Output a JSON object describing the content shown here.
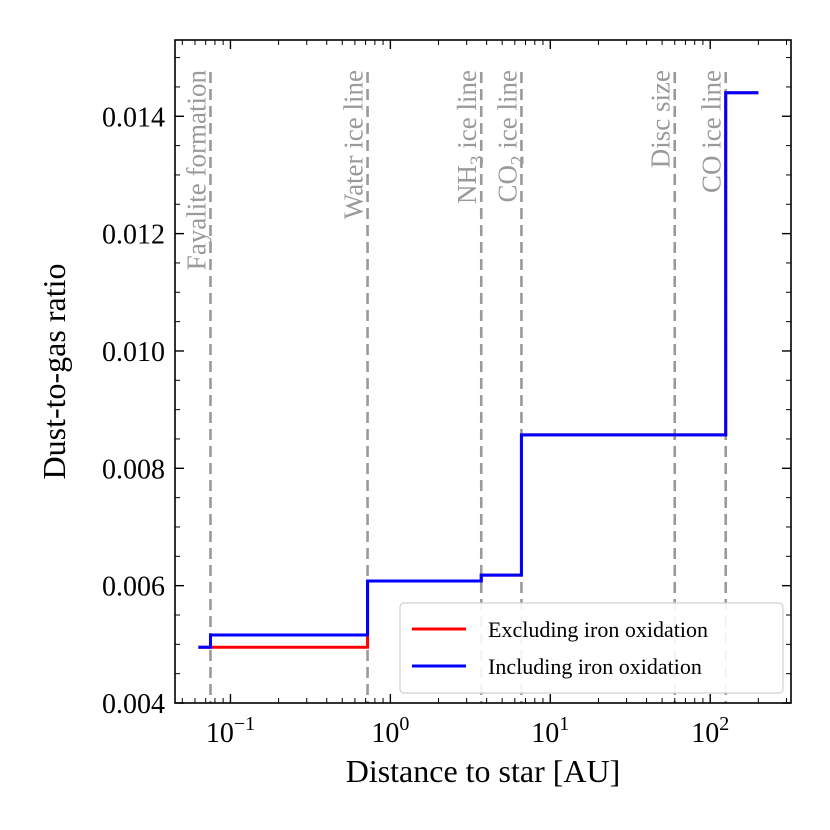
{
  "chart_data": {
    "type": "line",
    "title": "",
    "xlabel": "Distance to star [AU]",
    "ylabel": "Dust-to-gas ratio",
    "xscale": "log",
    "xlim": [
      0.045,
      320
    ],
    "ylim": [
      0.004,
      0.0153
    ],
    "x_ticks": [
      {
        "value": 0.1,
        "base": "10",
        "exp": "−1"
      },
      {
        "value": 1,
        "base": "10",
        "exp": "0"
      },
      {
        "value": 10,
        "base": "10",
        "exp": "1"
      },
      {
        "value": 100,
        "base": "10",
        "exp": "2"
      }
    ],
    "y_ticks": [
      {
        "value": 0.004,
        "label": "0.004"
      },
      {
        "value": 0.006,
        "label": "0.006"
      },
      {
        "value": 0.008,
        "label": "0.008"
      },
      {
        "value": 0.01,
        "label": "0.010"
      },
      {
        "value": 0.012,
        "label": "0.012"
      },
      {
        "value": 0.014,
        "label": "0.014"
      }
    ],
    "series": [
      {
        "name": "Excluding iron oxidation",
        "color": "#ff0000",
        "style": "step",
        "points": [
          [
            0.063,
            0.00495
          ],
          [
            0.72,
            0.00495
          ],
          [
            0.72,
            0.00608
          ],
          [
            3.7,
            0.00608
          ],
          [
            3.7,
            0.00618
          ],
          [
            6.6,
            0.00618
          ],
          [
            6.6,
            0.00857
          ],
          [
            125,
            0.00857
          ],
          [
            125,
            0.0144
          ],
          [
            200,
            0.0144
          ]
        ]
      },
      {
        "name": "Including iron oxidation",
        "color": "#0000ff",
        "style": "step",
        "points": [
          [
            0.063,
            0.00495
          ],
          [
            0.075,
            0.00495
          ],
          [
            0.075,
            0.00516
          ],
          [
            0.72,
            0.00516
          ],
          [
            0.72,
            0.00608
          ],
          [
            3.7,
            0.00608
          ],
          [
            3.7,
            0.00618
          ],
          [
            6.6,
            0.00618
          ],
          [
            6.6,
            0.00857
          ],
          [
            125,
            0.00857
          ],
          [
            125,
            0.0144
          ],
          [
            200,
            0.0144
          ]
        ]
      }
    ],
    "vertical_lines": [
      {
        "x": 0.075,
        "label": "Fayalite formation"
      },
      {
        "x": 0.72,
        "label": "Water ice line"
      },
      {
        "x": 3.7,
        "label_main": "NH",
        "label_sub": "3",
        "label_rest": " ice line"
      },
      {
        "x": 6.6,
        "label_main": "CO",
        "label_sub": "2",
        "label_rest": " ice line"
      },
      {
        "x": 60,
        "label": "Disc size"
      },
      {
        "x": 125,
        "label": "CO ice line"
      }
    ],
    "vline_color": "#9a9a9a",
    "legend_position": "lower-right",
    "grid": false
  }
}
